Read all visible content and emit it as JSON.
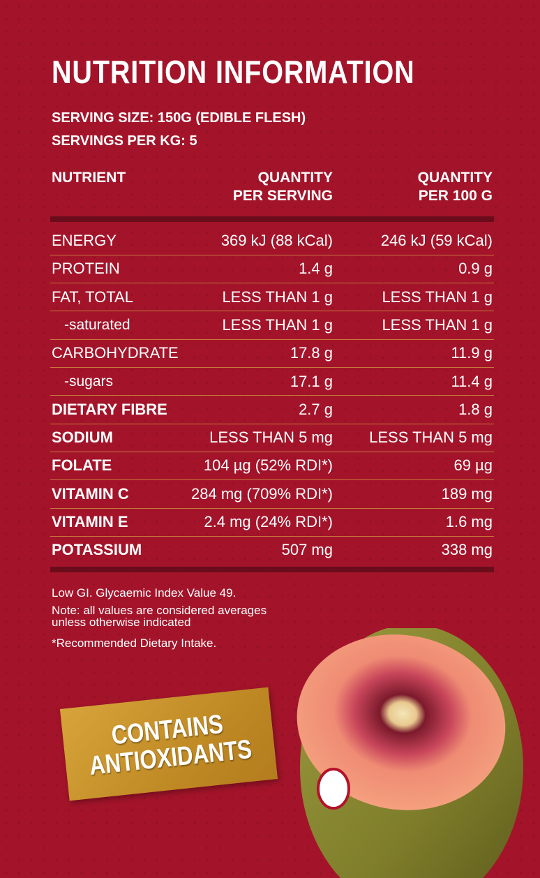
{
  "title": "NUTRITION INFORMATION",
  "serving": [
    "SERVING SIZE: 150G (EDIBLE FLESH)",
    "SERVINGS PER KG: 5"
  ],
  "table": {
    "headers": [
      [
        "NUTRIENT"
      ],
      [
        "QUANTITY",
        "PER SERVING"
      ],
      [
        "QUANTITY",
        "PER 100 G"
      ]
    ],
    "rows": [
      [
        "ENERGY",
        "369 kJ (88 kCal)",
        "246 kJ (59 kCal)"
      ],
      [
        "PROTEIN",
        "1.4 g",
        "0.9 g"
      ],
      [
        "FAT, TOTAL",
        "LESS THAN 1 g",
        "LESS THAN 1 g"
      ],
      [
        "-saturated",
        "LESS THAN 1 g",
        "LESS THAN 1 g"
      ],
      [
        "CARBOHYDRATE",
        "17.8 g",
        "11.9 g"
      ],
      [
        "-sugars",
        "17.1 g",
        "11.4 g"
      ],
      [
        "DIETARY FIBRE",
        "2.7 g",
        "1.8 g"
      ],
      [
        "SODIUM",
        "LESS THAN 5 mg",
        "LESS THAN 5 mg"
      ],
      [
        "FOLATE",
        "104 µg (52% RDI*)",
        "69 µg"
      ],
      [
        "VITAMIN C",
        "284 mg (709% RDI*)",
        "189 mg"
      ],
      [
        "VITAMIN E",
        "2.4 mg (24% RDI*)",
        "1.6 mg"
      ],
      [
        "POTASSIUM",
        "507 mg",
        "338 mg"
      ]
    ]
  },
  "notes": [
    [
      "Low GI. Glycaemic Index Value 49."
    ],
    [
      "Note: all values are considered averages",
      "unless otherwise indicated"
    ],
    [
      "*Recommended Dietary Intake."
    ]
  ],
  "badge": [
    "CONTAINS",
    "ANTIOXIDANTS"
  ]
}
